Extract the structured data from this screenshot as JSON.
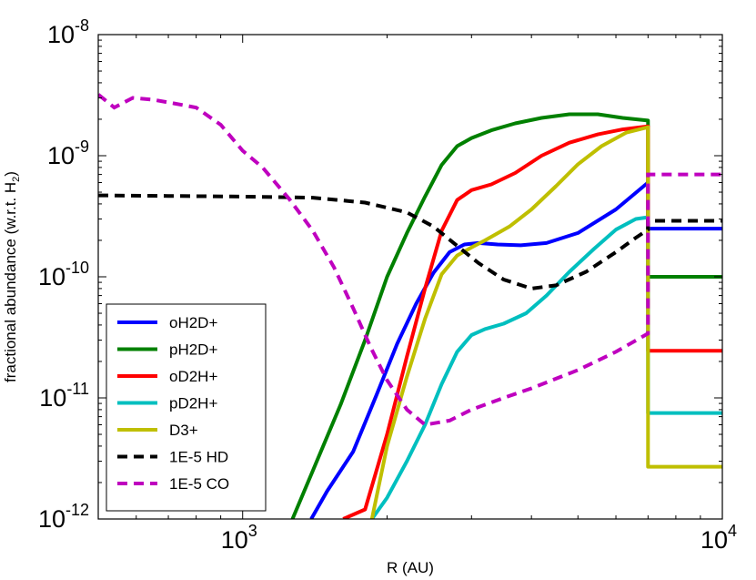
{
  "chart_data": {
    "type": "line",
    "title": "",
    "xlabel": "R (AU)",
    "ylabel_main": "fractional abundance (w.r.t. H",
    "ylabel_sub": "2",
    "ylabel_end": ")",
    "xscale": "log",
    "yscale": "log",
    "xlim": [
      500,
      10000
    ],
    "ylim": [
      1e-12,
      1e-08
    ],
    "grid": false,
    "legend_location": "lower-left",
    "x_ticks": [
      {
        "value": 1000,
        "base": "10",
        "exp": "3"
      },
      {
        "value": 10000,
        "base": "10",
        "exp": "4"
      }
    ],
    "y_ticks": [
      {
        "value": 1e-08,
        "base": "10",
        "exp": "-8"
      },
      {
        "value": 1e-09,
        "base": "10",
        "exp": "-9"
      },
      {
        "value": 1e-10,
        "base": "10",
        "exp": "-10"
      },
      {
        "value": 1e-11,
        "base": "10",
        "exp": "-11"
      },
      {
        "value": 1e-12,
        "base": "10",
        "exp": "-12"
      }
    ],
    "series": [
      {
        "name": "oH2D+",
        "color": "#0000ff",
        "style": "solid",
        "x": [
          1390,
          1500,
          1700,
          1900,
          2100,
          2300,
          2500,
          2700,
          2900,
          3100,
          3400,
          3800,
          4300,
          5000,
          6000,
          7000,
          7000,
          10000
        ],
        "y": [
          1e-12,
          1.7e-12,
          3.6e-12,
          1.05e-11,
          2.8e-11,
          6e-11,
          1.08e-10,
          1.6e-10,
          1.85e-10,
          1.9e-10,
          1.85e-10,
          1.82e-10,
          1.9e-10,
          2.3e-10,
          3.6e-10,
          6e-10,
          2.5e-10,
          2.5e-10
        ]
      },
      {
        "name": "pH2D+",
        "color": "#008000",
        "style": "solid",
        "x": [
          1270,
          1400,
          1600,
          1800,
          2000,
          2200,
          2400,
          2600,
          2800,
          3000,
          3300,
          3700,
          4200,
          4800,
          5500,
          6200,
          7000,
          7000,
          10000
        ],
        "y": [
          1e-12,
          2.5e-12,
          8.8e-12,
          3e-11,
          1e-10,
          2.3e-10,
          4.6e-10,
          8.4e-10,
          1.2e-09,
          1.4e-09,
          1.62e-09,
          1.85e-09,
          2.05e-09,
          2.2e-09,
          2.2e-09,
          2.05e-09,
          1.95e-09,
          1e-10,
          1e-10
        ]
      },
      {
        "name": "oD2H+",
        "color": "#ff0000",
        "style": "solid",
        "x": [
          1620,
          1800,
          2000,
          2200,
          2400,
          2600,
          2800,
          3000,
          3300,
          3700,
          4200,
          4800,
          5500,
          6200,
          7000,
          7000,
          10000
        ],
        "y": [
          1e-12,
          1.2e-12,
          5e-12,
          2.2e-11,
          8e-11,
          2.4e-10,
          4.3e-10,
          5.2e-10,
          5.8e-10,
          7.2e-10,
          1e-09,
          1.28e-09,
          1.5e-09,
          1.65e-09,
          1.75e-09,
          2.45e-11,
          2.45e-11
        ]
      },
      {
        "name": "pD2H+",
        "color": "#00bfbf",
        "style": "solid",
        "x": [
          1860,
          2000,
          2200,
          2400,
          2600,
          2800,
          3000,
          3200,
          3500,
          3900,
          4300,
          4800,
          5400,
          6000,
          6600,
          7000,
          7000,
          10000
        ],
        "y": [
          1e-12,
          1.5e-12,
          3e-12,
          6e-12,
          1.3e-11,
          2.4e-11,
          3.3e-11,
          3.7e-11,
          4.1e-11,
          5e-11,
          7e-11,
          1.1e-10,
          1.7e-10,
          2.45e-10,
          3e-10,
          3.1e-10,
          7.5e-12,
          7.5e-12
        ]
      },
      {
        "name": "D3+",
        "color": "#bfbf00",
        "style": "solid",
        "x": [
          1860,
          2000,
          2200,
          2400,
          2600,
          2800,
          3000,
          3200,
          3600,
          4000,
          4500,
          5000,
          5600,
          6300,
          7000,
          7000,
          10000
        ],
        "y": [
          1e-12,
          4e-12,
          1.5e-11,
          4.5e-11,
          1.05e-10,
          1.5e-10,
          1.75e-10,
          2e-10,
          2.6e-10,
          3.6e-10,
          5.6e-10,
          8.5e-10,
          1.2e-09,
          1.55e-09,
          1.72e-09,
          2.7e-12,
          2.7e-12
        ]
      },
      {
        "name": "1E-5 HD",
        "color": "#000000",
        "style": "dashed",
        "x": [
          500,
          700,
          1000,
          1400,
          1800,
          2200,
          2500,
          2800,
          3100,
          3500,
          4000,
          4500,
          5200,
          6000,
          6600,
          7000,
          7000,
          10000
        ],
        "y": [
          4.7e-10,
          4.65e-10,
          4.6e-10,
          4.5e-10,
          4.1e-10,
          3.4e-10,
          2.6e-10,
          1.8e-10,
          1.3e-10,
          9.5e-11,
          8e-11,
          8.5e-11,
          1.1e-10,
          1.6e-10,
          2.1e-10,
          2.45e-10,
          2.9e-10,
          2.9e-10
        ]
      },
      {
        "name": "1E-5 CO",
        "color": "#bf00bf",
        "style": "dashed",
        "x": [
          500,
          540,
          590,
          650,
          720,
          800,
          900,
          1000,
          1100,
          1250,
          1400,
          1550,
          1700,
          1850,
          2000,
          2200,
          2400,
          2700,
          3000,
          3500,
          4000,
          5000,
          6000,
          7000,
          7000,
          10000
        ],
        "y": [
          3.2e-09,
          2.5e-09,
          3e-09,
          2.9e-09,
          2.7e-09,
          2.5e-09,
          1.8e-09,
          1.1e-09,
          8e-10,
          4.4e-10,
          2.4e-10,
          1.2e-10,
          5.5e-11,
          2.6e-11,
          1.4e-11,
          8e-12,
          6e-12,
          6.5e-12,
          8e-12,
          1e-11,
          1.2e-11,
          1.7e-11,
          2.4e-11,
          3.4e-11,
          7e-10,
          7e-10
        ]
      }
    ]
  }
}
